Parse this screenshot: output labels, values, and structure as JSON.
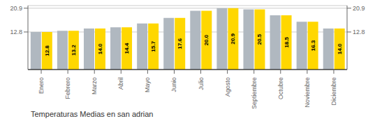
{
  "chart_data": {
    "type": "bar",
    "title": "Temperaturas Medias en san adrian",
    "categories": [
      "Enero",
      "Febrero",
      "Marzo",
      "Abril",
      "Mayo",
      "Junio",
      "Julio",
      "Agosto",
      "Septiembre",
      "Octubre",
      "Noviembre",
      "Diciembre"
    ],
    "series": [
      {
        "color": "#B0B8C0",
        "values": [
          12.8,
          13.2,
          14.0,
          14.4,
          15.7,
          17.6,
          20.0,
          20.9,
          20.5,
          18.5,
          16.3,
          14.0
        ]
      },
      {
        "color": "#FFD700",
        "values": [
          12.8,
          13.2,
          14.0,
          14.4,
          15.7,
          17.6,
          20.0,
          20.9,
          20.5,
          18.5,
          16.3,
          14.0
        ],
        "data_labels": true,
        "value_labels": [
          "12.8",
          "13.2",
          "14.0",
          "14.4",
          "15.7",
          "17.6",
          "20.0",
          "20.9",
          "20.5",
          "18.5",
          "16.3",
          "14.0"
        ]
      }
    ],
    "ylim": [
      0,
      21.8
    ],
    "yticks": [
      12.8,
      20.9
    ],
    "y2lim": [
      0,
      21.8
    ],
    "y2ticks": [
      12.8,
      20.9
    ],
    "grid": true
  }
}
